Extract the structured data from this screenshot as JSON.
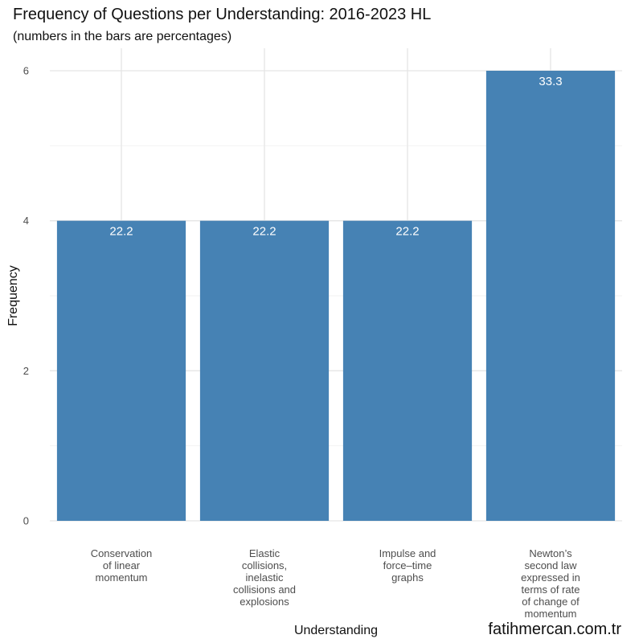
{
  "chart_data": {
    "type": "bar",
    "title": "Frequency of Questions per Understanding: 2016-2023 HL",
    "subtitle": "(numbers in the bars are percentages)",
    "xlabel": "Understanding",
    "ylabel": "Frequency",
    "categories": [
      "Conservation of linear momentum",
      "Elastic collisions, inelastic collisions and explosions",
      "Impulse and force–time graphs",
      "Newton’s second law expressed in terms of rate of change of momentum"
    ],
    "category_lines": [
      [
        "Conservation",
        "of linear",
        "momentum"
      ],
      [
        "Elastic",
        "collisions,",
        "inelastic",
        "collisions and",
        "explosions"
      ],
      [
        "Impulse and",
        "force–time",
        "graphs"
      ],
      [
        "Newton’s",
        "second law",
        "expressed in",
        "terms of rate",
        "of change of",
        "momentum"
      ]
    ],
    "values": [
      4,
      4,
      4,
      6
    ],
    "labels": [
      "22.2",
      "22.2",
      "22.2",
      "33.3"
    ],
    "ylim": [
      0,
      6.3
    ],
    "yticks": [
      0,
      2,
      4,
      6
    ],
    "grid": true,
    "bar_color": "#4682B4"
  },
  "watermark": "fatihmercan.com.tr"
}
